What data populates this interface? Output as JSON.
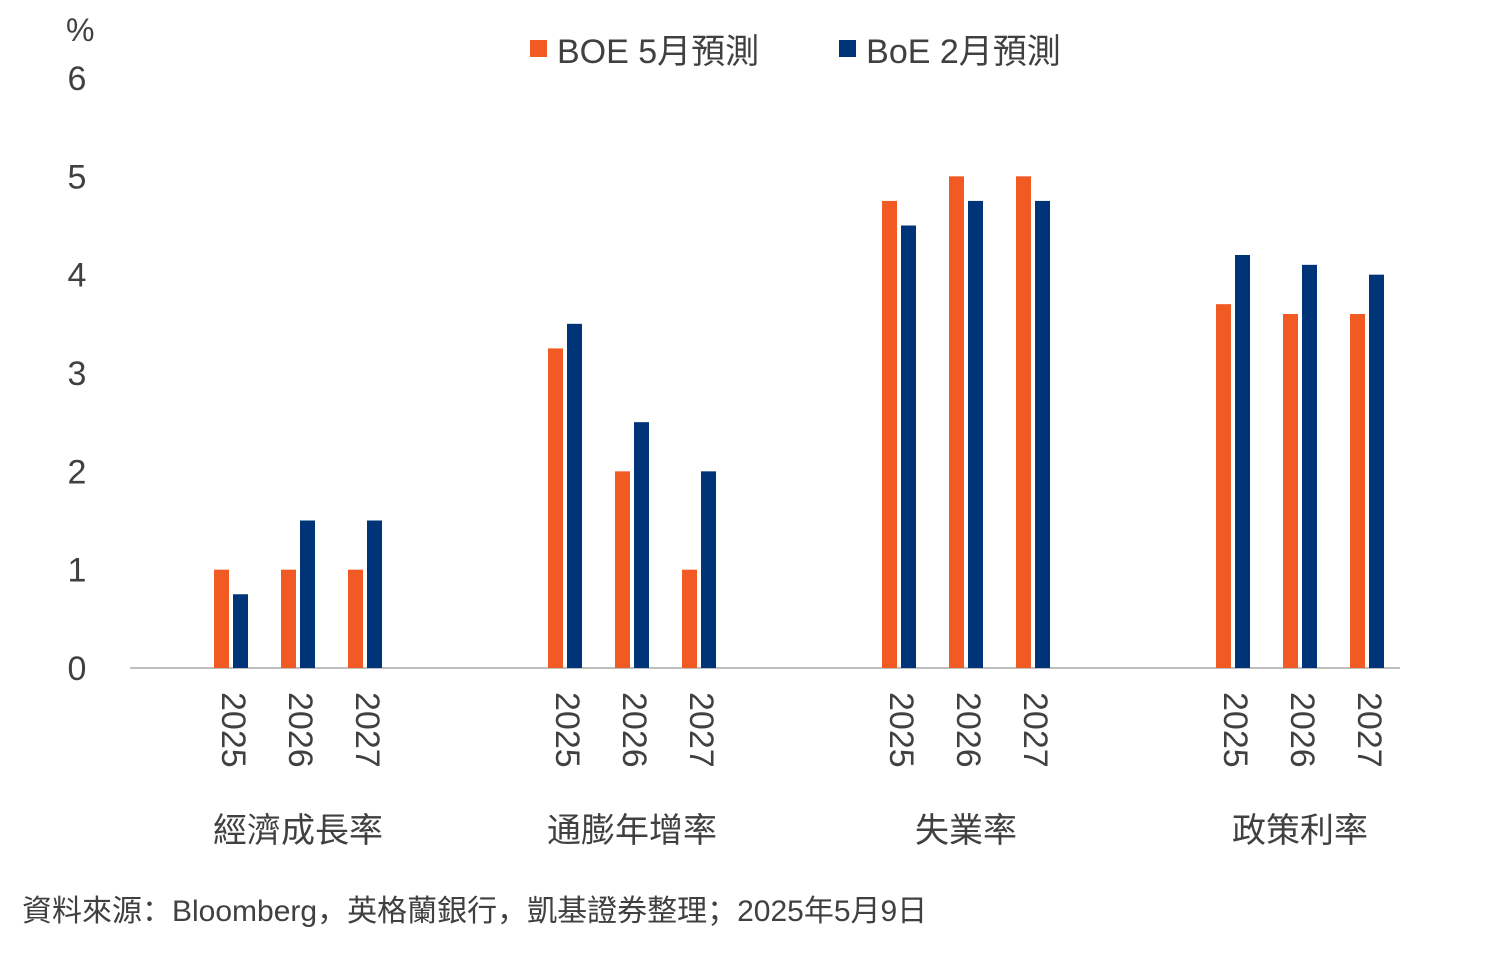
{
  "chart_data": {
    "type": "bar",
    "unit_label": "%",
    "groups": [
      "經濟成長率",
      "通膨年增率",
      "失業率",
      "政策利率"
    ],
    "years": [
      "2025",
      "2026",
      "2027"
    ],
    "series": [
      {
        "name": "BOE 5月預測",
        "color": "#F15A22",
        "values": [
          [
            1,
            1,
            1
          ],
          [
            3.25,
            2,
            1
          ],
          [
            4.75,
            5,
            5
          ],
          [
            3.7,
            3.6,
            3.6
          ]
        ]
      },
      {
        "name": "BoE 2月預測",
        "color": "#003478",
        "values": [
          [
            0.75,
            1.5,
            1.5
          ],
          [
            3.5,
            2.5,
            2
          ],
          [
            4.5,
            4.75,
            4.75
          ],
          [
            4.2,
            4.1,
            4.0
          ]
        ]
      }
    ],
    "ylim": [
      0,
      6
    ],
    "yticks": [
      0,
      1,
      2,
      3,
      4,
      5,
      6
    ],
    "grid": false,
    "legend_position": "top-center"
  },
  "source_note": "資料來源：Bloomberg，英格蘭銀行，凱基證券整理；2025年5月9日"
}
